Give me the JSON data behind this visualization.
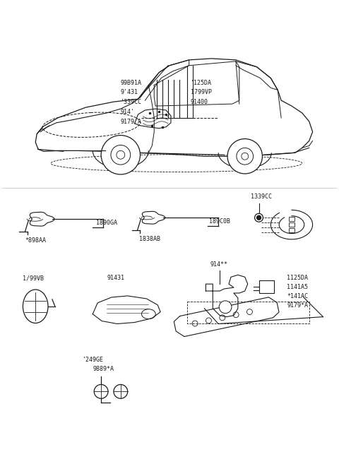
{
  "bg_color": "#ffffff",
  "line_color": "#1a1a1a",
  "text_color": "#1a1a1a",
  "fig_w": 4.8,
  "fig_h": 6.57,
  "dpi": 100,
  "top_labels_left": [
    "99B91A",
    "9'431",
    "'339CC",
    "914'",
    "9179'A"
  ],
  "top_labels_right": [
    "'125DA",
    "1799VP",
    "91400"
  ],
  "comp1_label1": "*898AA",
  "comp1_label2": "1890GA",
  "comp2_label1": "1838AB",
  "comp2_label2": "189C0B",
  "comp3_label": "1339CC",
  "comp4_label": "1/99VB",
  "comp5_label": "91431",
  "comp6_label": "914**",
  "comp7_labels": [
    "1125DA",
    "1141A5",
    "*141AC",
    "9179*A"
  ],
  "comp8_label1": "'249GE",
  "comp8_label2": "9889*A"
}
